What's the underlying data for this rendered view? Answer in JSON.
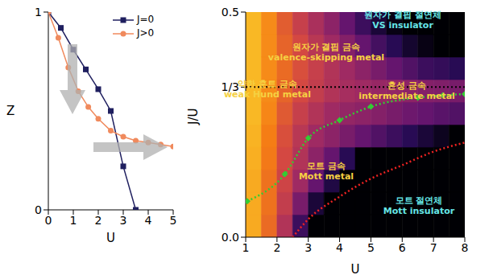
{
  "chart_data": [
    {
      "type": "line",
      "x_label": "U",
      "y_label": "Z",
      "xlim": [
        0,
        5
      ],
      "xticks": [
        0,
        1,
        2,
        3,
        4,
        5
      ],
      "ylim": [
        0,
        1
      ],
      "yticks": [
        0,
        1
      ],
      "legend": "upper right",
      "series": [
        {
          "name": "J=0",
          "color": "#1f1f5f",
          "marker": "square",
          "line_style": "solid",
          "x": [
            0,
            0.5,
            1,
            1.5,
            2,
            2.5,
            3,
            3.5
          ],
          "values": [
            1,
            0.92,
            0.81,
            0.71,
            0.61,
            0.5,
            0.22,
            0
          ]
        },
        {
          "name": "J>0",
          "color": "#f08a5d",
          "marker": "circle",
          "line_style": "solid",
          "x": [
            0,
            0.4,
            0.8,
            1.2,
            1.6,
            2,
            2.5,
            3,
            3.5,
            4,
            4.5,
            5
          ],
          "values": [
            1,
            0.87,
            0.72,
            0.6,
            0.52,
            0.46,
            0.4,
            0.37,
            0.35,
            0.34,
            0.33,
            0.32
          ]
        }
      ]
    },
    {
      "type": "heatmap",
      "x_label": "U",
      "y_label": "J/U",
      "xlim": [
        1,
        8
      ],
      "xticks": [
        1,
        2,
        3,
        4,
        5,
        6,
        7,
        8
      ],
      "ylim": [
        0,
        0.5
      ],
      "yticks": [
        {
          "value": 0,
          "label": "0.0"
        },
        {
          "value": 0.3333,
          "label": "1/3"
        },
        0.5
      ],
      "heatmap": {
        "x_edges": [
          1,
          1.5,
          2,
          2.5,
          3,
          3.5,
          4,
          4.5,
          5,
          5.5,
          6,
          6.5,
          7,
          7.5,
          8
        ],
        "y_edges": [
          0,
          0.05,
          0.1,
          0.15,
          0.2,
          0.25,
          0.3,
          0.35,
          0.4,
          0.45,
          0.5
        ],
        "z": [
          [
            0.85,
            0.7,
            0.5,
            0.2,
            0,
            0,
            0,
            0,
            0,
            0,
            0,
            0,
            0,
            0
          ],
          [
            0.85,
            0.72,
            0.55,
            0.35,
            0.1,
            0,
            0,
            0,
            0,
            0,
            0,
            0,
            0,
            0
          ],
          [
            0.85,
            0.72,
            0.58,
            0.45,
            0.3,
            0.12,
            0,
            0,
            0,
            0,
            0,
            0,
            0,
            0
          ],
          [
            0.86,
            0.74,
            0.6,
            0.5,
            0.4,
            0.3,
            0.15,
            0,
            0,
            0,
            0,
            0,
            0,
            0
          ],
          [
            0.87,
            0.75,
            0.62,
            0.52,
            0.45,
            0.4,
            0.35,
            0.3,
            0.25,
            0.2,
            0.15,
            0.1,
            0.05,
            0
          ],
          [
            0.88,
            0.77,
            0.65,
            0.56,
            0.5,
            0.45,
            0.42,
            0.4,
            0.38,
            0.35,
            0.32,
            0.3,
            0.27,
            0.25
          ],
          [
            0.88,
            0.78,
            0.68,
            0.6,
            0.55,
            0.5,
            0.47,
            0.45,
            0.43,
            0.42,
            0.4,
            0.38,
            0.37,
            0.35
          ],
          [
            0.88,
            0.78,
            0.7,
            0.62,
            0.56,
            0.5,
            0.45,
            0.4,
            0.35,
            0.3,
            0.25,
            0.2,
            0.18,
            0.15
          ],
          [
            0.88,
            0.78,
            0.68,
            0.6,
            0.52,
            0.45,
            0.38,
            0.3,
            0.22,
            0.15,
            0.08,
            0.03,
            0,
            0
          ],
          [
            0.88,
            0.78,
            0.66,
            0.56,
            0.48,
            0.4,
            0.3,
            0.2,
            0.1,
            0.03,
            0,
            0,
            0,
            0
          ]
        ]
      },
      "hline": {
        "value": 0.3333,
        "color": "#000000",
        "line_style": "dotted"
      },
      "series": [
        {
          "color": "#33cc33",
          "marker": "diamond",
          "line_style": "dotted",
          "x": [
            1.05,
            2.25,
            3,
            4,
            5,
            6.5,
            7.3,
            8
          ],
          "values": [
            0.08,
            0.14,
            0.22,
            0.26,
            0.29,
            0.31,
            0.315,
            0.318
          ]
        },
        {
          "color": "#ee2222",
          "marker": "none",
          "line_style": "dotted",
          "x": [
            2.5,
            3,
            4,
            5,
            6,
            7,
            8
          ],
          "values": [
            0,
            0.04,
            0.09,
            0.13,
            0.16,
            0.19,
            0.21
          ]
        }
      ],
      "annotations": [
        {
          "lines": [
            "원자가 결핍 절연체",
            "VS insulator"
          ],
          "color": "#66e6e6"
        },
        {
          "lines": [
            "원자가 결핍 금속",
            "valence-skipping metal"
          ],
          "color": "#f5d142"
        },
        {
          "lines": [
            "약한 훈트 금속",
            "weak Hund metal"
          ],
          "color": "#f5d142"
        },
        {
          "lines": [
            "혼성 금속",
            "intermediate metal"
          ],
          "color": "#f5d142"
        },
        {
          "lines": [
            "모트 금속",
            "Mott metal"
          ],
          "color": "#f5d142"
        },
        {
          "lines": [
            "모트 절연체",
            "Mott insulator"
          ],
          "color": "#66e6e6"
        }
      ]
    }
  ]
}
